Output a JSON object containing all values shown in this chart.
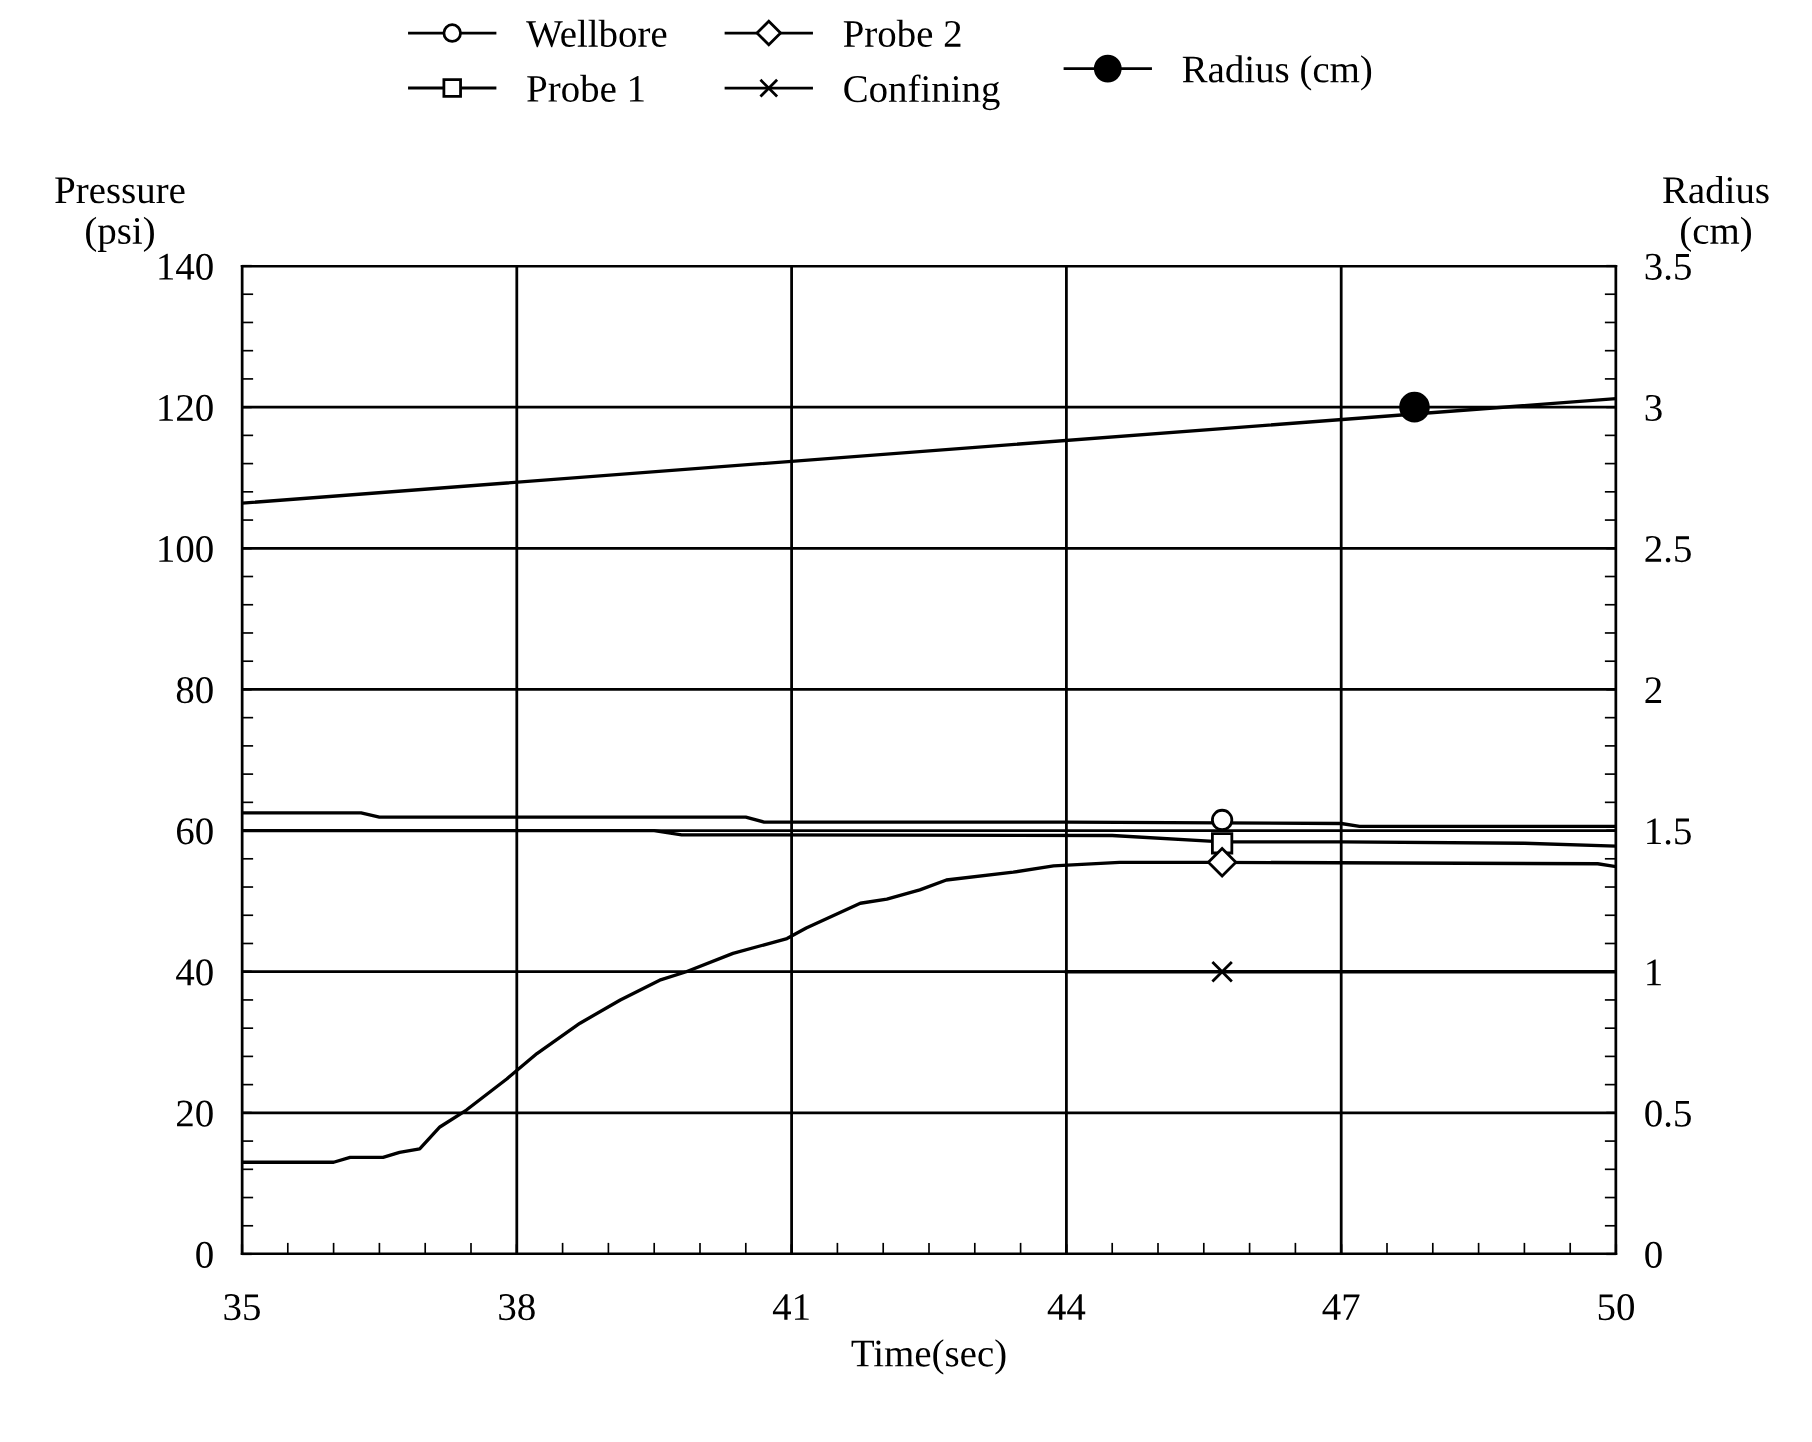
{
  "chart_data": {
    "type": "line",
    "xlabel": "Time(sec)",
    "ylabel": "Pressure\n(psi)",
    "y2label": "Radius\n(cm)",
    "xlim": [
      35,
      50
    ],
    "xticks": [
      35,
      38,
      41,
      44,
      47,
      50
    ],
    "ylim": [
      0,
      140
    ],
    "yticks": [
      0,
      20,
      40,
      60,
      80,
      100,
      120,
      140
    ],
    "y2lim": [
      0,
      3.5
    ],
    "y2ticks": [
      0,
      0.5,
      1,
      1.5,
      2,
      2.5,
      3,
      3.5
    ],
    "grid": true,
    "legend": "top",
    "line_style": "solid",
    "series": [
      {
        "name": "Wellbore",
        "color": "#000000",
        "x": [
          35,
          36.3,
          36.5,
          40.5,
          40.7,
          44,
          47,
          47.2,
          50
        ],
        "values": [
          62.5,
          62.5,
          61.9,
          61.9,
          61.2,
          61.2,
          61,
          60.6,
          60.6
        ]
      },
      {
        "name": "Probe 1",
        "color": "#000000",
        "x": [
          35,
          39.5,
          39.8,
          44.5,
          45.7,
          47,
          49,
          50
        ],
        "values": [
          60,
          60,
          59.4,
          59.3,
          58.4,
          58.4,
          58.2,
          57.8
        ]
      },
      {
        "name": "Probe 2",
        "color": "#000000",
        "x": [
          35,
          36.0,
          36.18,
          36.54,
          36.72,
          36.94,
          37.16,
          37.45,
          37.89,
          38.22,
          38.69,
          39.13,
          39.56,
          39.85,
          40.36,
          40.95,
          41.16,
          41.75,
          42.04,
          42.4,
          42.69,
          43.42,
          43.86,
          44.58,
          45.6,
          49.8,
          50
        ],
        "values": [
          13.0,
          13.0,
          13.7,
          13.7,
          14.4,
          14.9,
          18.0,
          20.4,
          24.8,
          28.4,
          32.7,
          36.0,
          38.8,
          40.0,
          42.6,
          44.7,
          46.2,
          49.7,
          50.3,
          51.6,
          53.0,
          54.1,
          55.0,
          55.5,
          55.5,
          55.3,
          54.9
        ]
      },
      {
        "name": "Confining",
        "color": "#000000",
        "x": [
          44,
          50
        ],
        "values": [
          40,
          40
        ]
      },
      {
        "name": "Radius (cm)",
        "color": "#000000",
        "axis": "y2",
        "x": [
          35,
          50
        ],
        "values": [
          2.66,
          3.03
        ]
      },
      {
        "type": "scatter",
        "color": "#000000",
        "marker": "circle",
        "x": [
          45.7
        ],
        "values": [
          61.5
        ]
      },
      {
        "type": "scatter",
        "color": "#000000",
        "marker": "square",
        "x": [
          45.7
        ],
        "values": [
          58.2
        ]
      },
      {
        "type": "scatter",
        "color": "#000000",
        "marker": "diamond",
        "x": [
          45.7
        ],
        "values": [
          55.5
        ]
      },
      {
        "type": "scatter",
        "color": "#000000",
        "marker": "cross",
        "x": [
          45.7
        ],
        "values": [
          40
        ]
      },
      {
        "type": "scatter",
        "color": "#000000",
        "marker": "circle",
        "axis": "y2",
        "x": [
          47.8
        ],
        "values": [
          3.0
        ]
      }
    ]
  }
}
